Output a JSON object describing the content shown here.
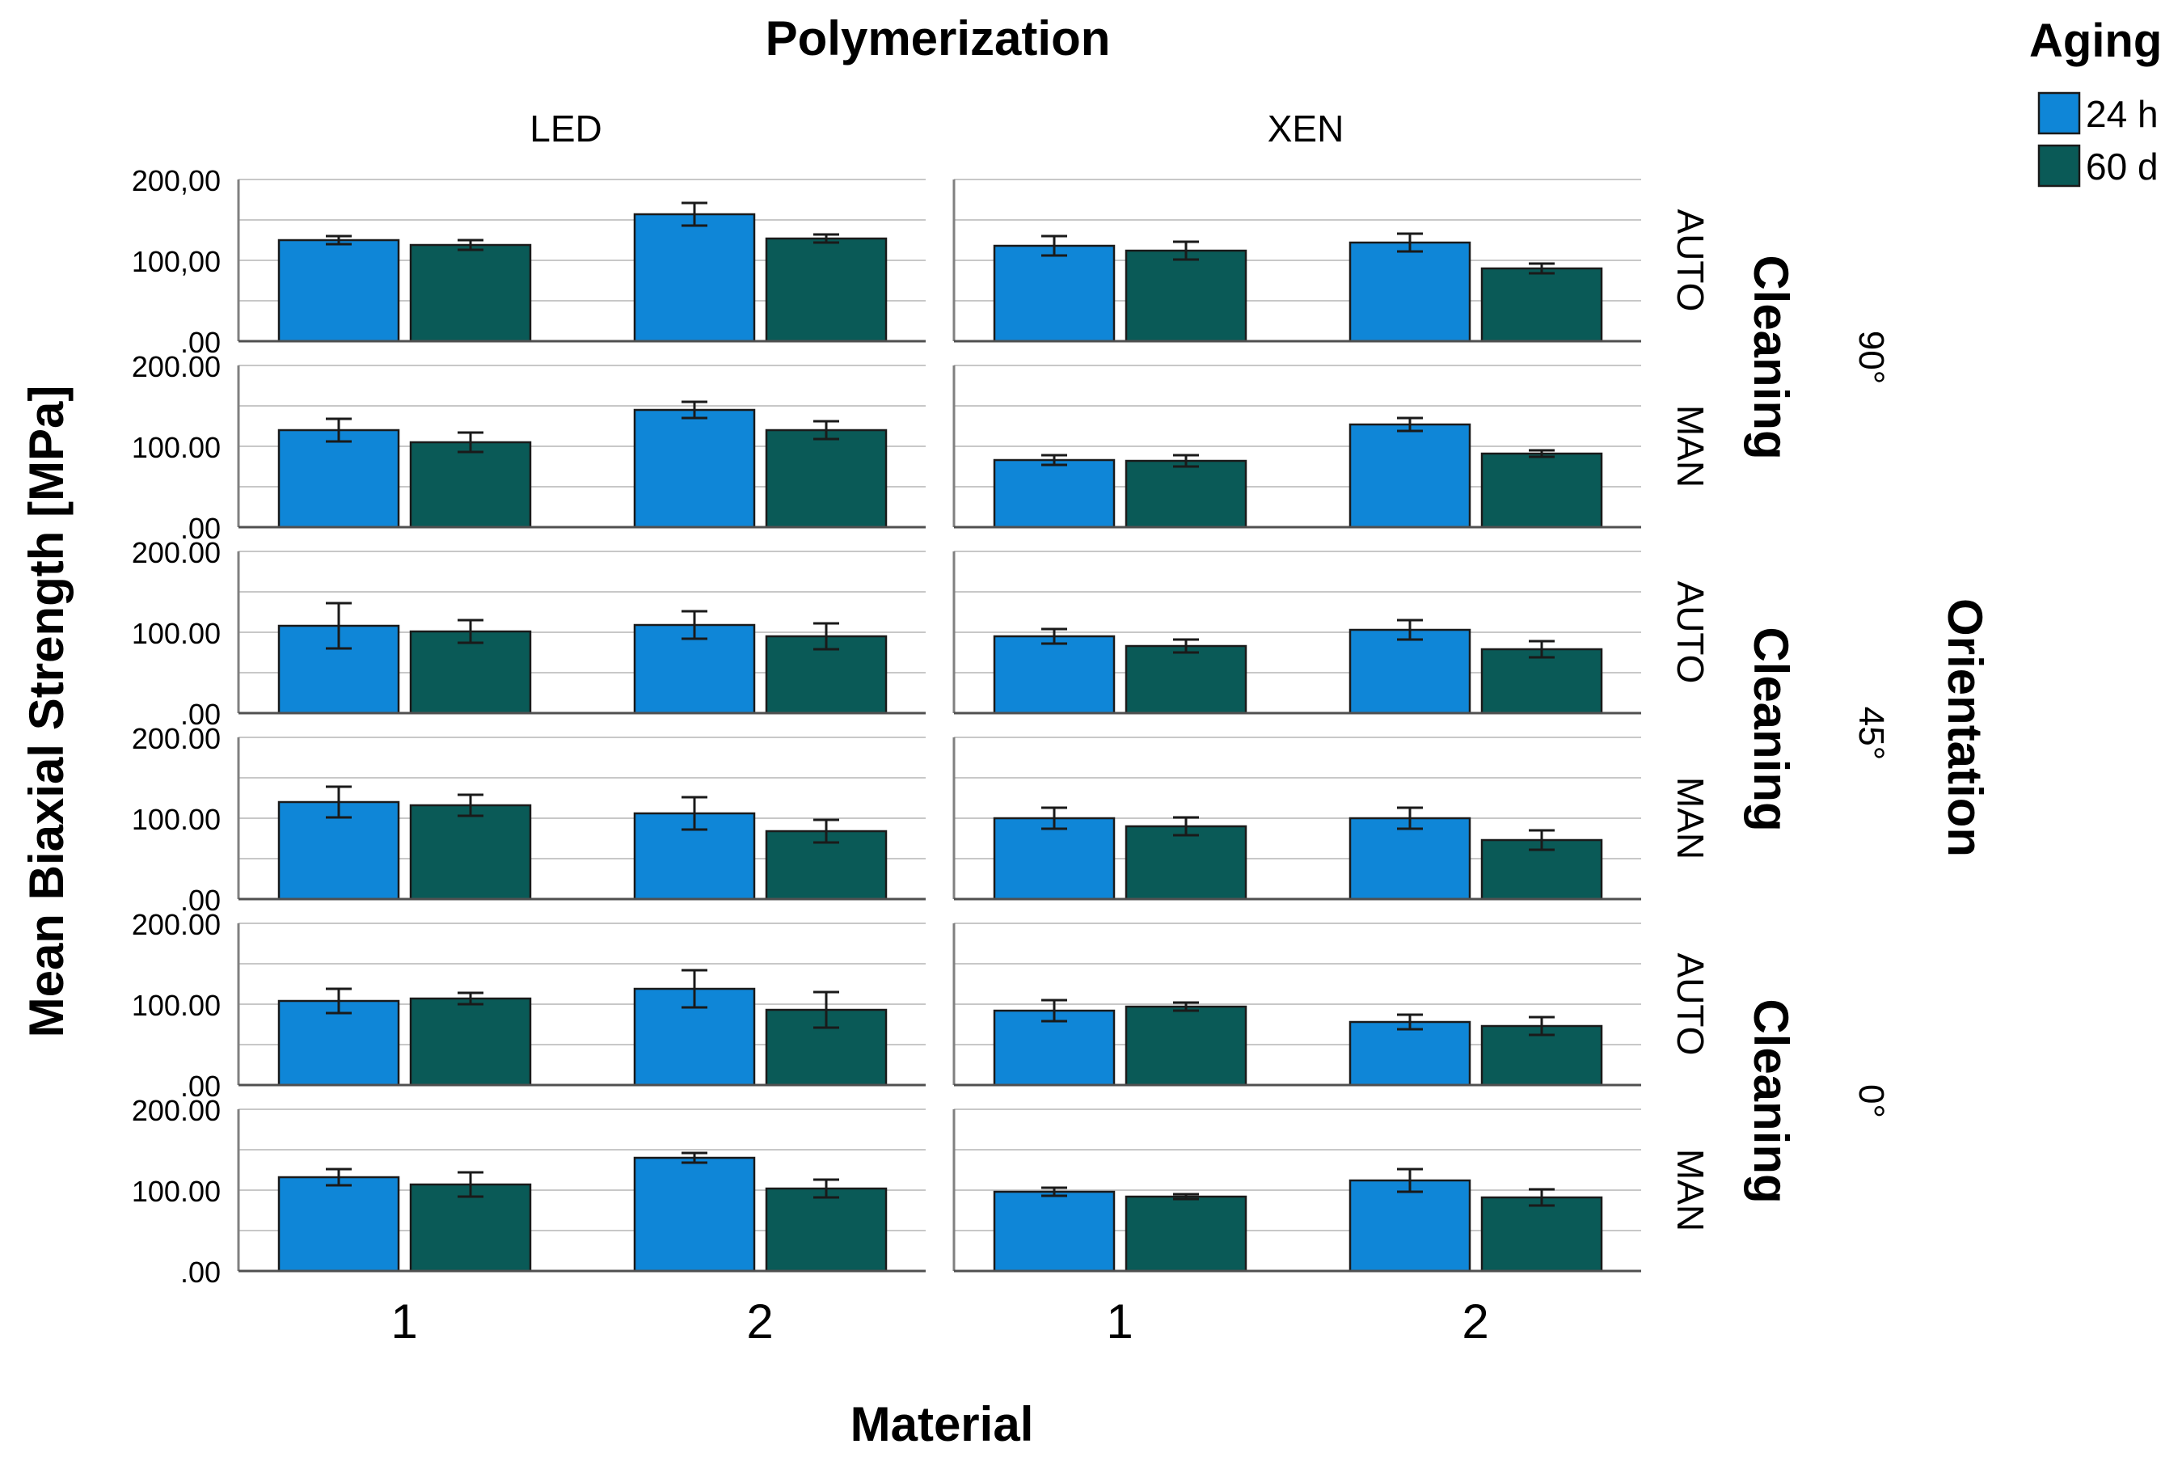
{
  "chart_data": {
    "type": "bar",
    "title": "Polymerization",
    "xlabel": "Material",
    "ylabel": "Mean Biaxial Strength [MPa]",
    "ylim": [
      0,
      200
    ],
    "y_ticks": [
      ".00",
      "100,00",
      "200,00"
    ],
    "y_ticks_alt": [
      ".00",
      "100.00",
      "200.00"
    ],
    "columns": [
      "LED",
      "XEN"
    ],
    "categories": [
      "1",
      "2"
    ],
    "row_facet_title": "Cleaning",
    "row_group_title": "Orientation",
    "legend": {
      "title": "Aging",
      "entries": [
        {
          "name": "24 h",
          "color": "#0f86d7"
        },
        {
          "name": "60 d",
          "color": "#0a5a57"
        }
      ]
    },
    "rows": [
      {
        "orientation": "90°",
        "cleaning": "AUTO",
        "LED": {
          "24 h": [
            125,
            157
          ],
          "60 d": [
            119,
            127
          ],
          "err24": [
            5,
            14
          ],
          "err60": [
            6,
            5
          ]
        },
        "XEN": {
          "24 h": [
            118,
            122
          ],
          "60 d": [
            112,
            90
          ],
          "err24": [
            12,
            11
          ],
          "err60": [
            11,
            6
          ]
        }
      },
      {
        "orientation": "90°",
        "cleaning": "MAN",
        "LED": {
          "24 h": [
            120,
            145
          ],
          "60 d": [
            105,
            120
          ],
          "err24": [
            14,
            10
          ],
          "err60": [
            12,
            11
          ]
        },
        "XEN": {
          "24 h": [
            83,
            127
          ],
          "60 d": [
            82,
            91
          ],
          "err24": [
            6,
            8
          ],
          "err60": [
            7,
            4
          ]
        }
      },
      {
        "orientation": "45°",
        "cleaning": "AUTO",
        "LED": {
          "24 h": [
            108,
            109
          ],
          "60 d": [
            101,
            95
          ],
          "err24": [
            28,
            17
          ],
          "err60": [
            14,
            16
          ]
        },
        "XEN": {
          "24 h": [
            95,
            103
          ],
          "60 d": [
            83,
            79
          ],
          "err24": [
            9,
            12
          ],
          "err60": [
            8,
            10
          ]
        }
      },
      {
        "orientation": "45°",
        "cleaning": "MAN",
        "LED": {
          "24 h": [
            120,
            106
          ],
          "60 d": [
            116,
            84
          ],
          "err24": [
            19,
            20
          ],
          "err60": [
            13,
            14
          ]
        },
        "XEN": {
          "24 h": [
            100,
            100
          ],
          "60 d": [
            90,
            73
          ],
          "err24": [
            13,
            13
          ],
          "err60": [
            11,
            12
          ]
        }
      },
      {
        "orientation": "0°",
        "cleaning": "AUTO",
        "LED": {
          "24 h": [
            104,
            119
          ],
          "60 d": [
            107,
            93
          ],
          "err24": [
            15,
            23
          ],
          "err60": [
            7,
            22
          ]
        },
        "XEN": {
          "24 h": [
            92,
            78
          ],
          "60 d": [
            97,
            73
          ],
          "err24": [
            13,
            9
          ],
          "err60": [
            5,
            11
          ]
        }
      },
      {
        "orientation": "0°",
        "cleaning": "MAN",
        "LED": {
          "24 h": [
            116,
            140
          ],
          "60 d": [
            107,
            102
          ],
          "err24": [
            10,
            6
          ],
          "err60": [
            15,
            11
          ]
        },
        "XEN": {
          "24 h": [
            98,
            112
          ],
          "60 d": [
            92,
            91
          ],
          "err24": [
            5,
            14
          ],
          "err60": [
            3,
            10
          ]
        }
      }
    ]
  }
}
